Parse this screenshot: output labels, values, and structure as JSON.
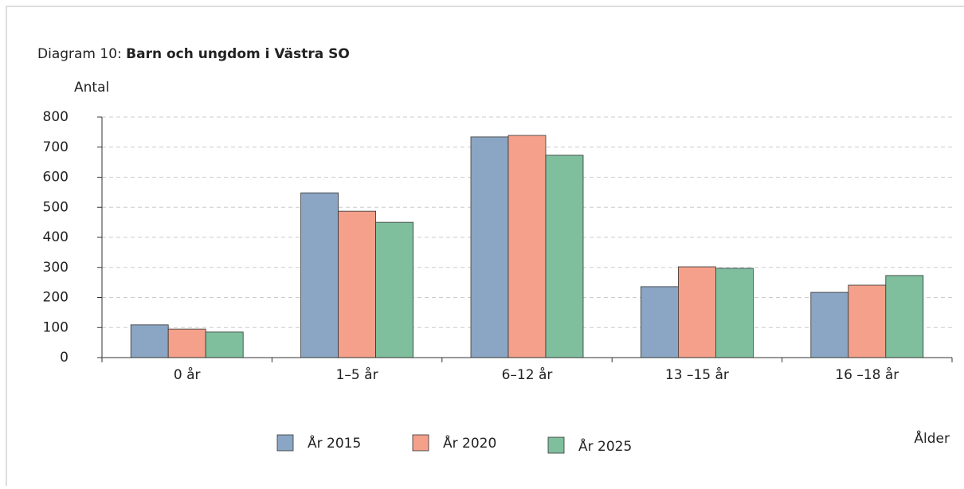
{
  "chart_data": {
    "type": "bar",
    "title_prefix": "Diagram 10:",
    "title": "Barn och ungdom i Västra SO",
    "y_label": "Antal",
    "x_label": "Ålder",
    "categories": [
      "0 år",
      "1–5 år",
      "6–12 år",
      "13 –15 år",
      "16 –18 år"
    ],
    "series": [
      {
        "name": "År 2015",
        "color": "#8aa6c4",
        "values": [
          109,
          548,
          734,
          236,
          217
        ]
      },
      {
        "name": "År 2020",
        "color": "#f4a08a",
        "values": [
          95,
          487,
          739,
          302,
          241
        ]
      },
      {
        "name": "År 2025",
        "color": "#7fbf9e",
        "values": [
          85,
          450,
          673,
          297,
          273
        ]
      }
    ],
    "ylim": [
      0,
      800
    ],
    "yticks": [
      0,
      100,
      200,
      300,
      400,
      500,
      600,
      700,
      800
    ],
    "grid": true,
    "legend": "bottom"
  }
}
